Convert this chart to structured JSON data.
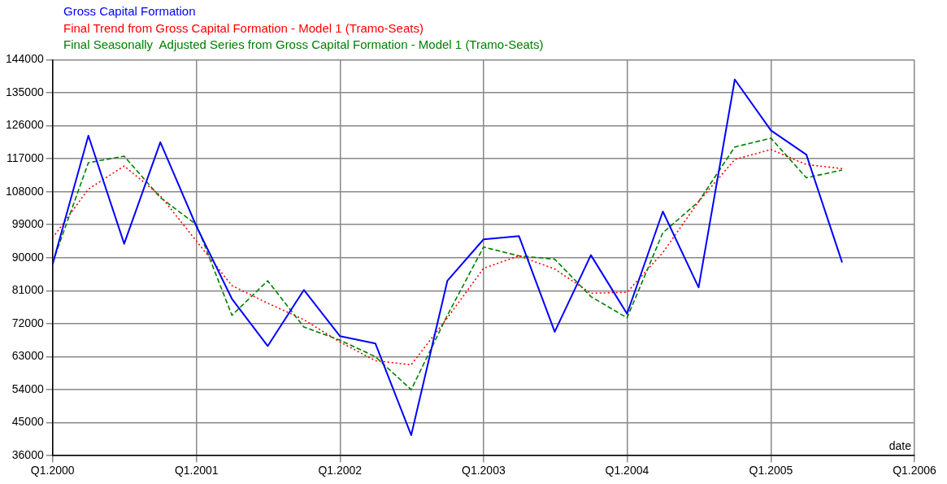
{
  "chart_data": {
    "type": "line",
    "xlabel": "date",
    "x": [
      "2000-01",
      "2000-04",
      "2000-07",
      "2000-10",
      "2001-01",
      "2001-04",
      "2001-07",
      "2001-10",
      "2002-01",
      "2002-04",
      "2002-07",
      "2002-10",
      "2003-01",
      "2003-04",
      "2003-07",
      "2003-10",
      "2004-01",
      "2004-04",
      "2004-07",
      "2004-10",
      "2005-01",
      "2005-04",
      "2005-07"
    ],
    "series": [
      {
        "name": "Gross Capital Formation",
        "color": "#0000ff",
        "line_style": "solid",
        "values": [
          88200,
          123300,
          93800,
          121500,
          98500,
          78800,
          65900,
          81200,
          68600,
          66600,
          41600,
          83700,
          95000,
          95900,
          69800,
          90700,
          74700,
          102600,
          81900,
          138600,
          124700,
          118100,
          88700
        ]
      },
      {
        "name": "Final Trend from Gross Capital Formation - Model 1 (Tramo-Seats)",
        "color": "#ff0000",
        "line_style": "dotted",
        "values": [
          95400,
          108700,
          115000,
          106900,
          94500,
          82400,
          77600,
          73100,
          67000,
          61900,
          60800,
          73600,
          87100,
          90500,
          86900,
          80300,
          80600,
          91400,
          105300,
          116800,
          119500,
          115400,
          114300
        ]
      },
      {
        "name": "Final Seasonally  Adjusted Series from Gross Capital Formation - Model 1 (Tramo-Seats)",
        "color": "#008000",
        "line_style": "dashed",
        "values": [
          88700,
          115900,
          117700,
          106400,
          99000,
          74300,
          83700,
          71100,
          67500,
          63000,
          54000,
          74300,
          92900,
          90500,
          89600,
          79400,
          73600,
          96800,
          105300,
          120200,
          122600,
          111800,
          113900
        ]
      }
    ],
    "xlim": [
      "2000-01",
      "2006-01"
    ],
    "xticks": [
      {
        "value": "2000-01",
        "label": "Q1.2000"
      },
      {
        "value": "2001-01",
        "label": "Q1.2001"
      },
      {
        "value": "2002-01",
        "label": "Q1.2002"
      },
      {
        "value": "2003-01",
        "label": "Q1.2003"
      },
      {
        "value": "2004-01",
        "label": "Q1.2004"
      },
      {
        "value": "2005-01",
        "label": "Q1.2005"
      },
      {
        "value": "2006-01",
        "label": "Q1.2006"
      }
    ],
    "ylim": [
      36000,
      144000
    ],
    "yticks": [
      36000,
      45000,
      54000,
      63000,
      72000,
      81000,
      90000,
      99000,
      108000,
      117000,
      126000,
      135000,
      144000
    ],
    "grid": true,
    "legend": "top left",
    "marker": "none"
  }
}
